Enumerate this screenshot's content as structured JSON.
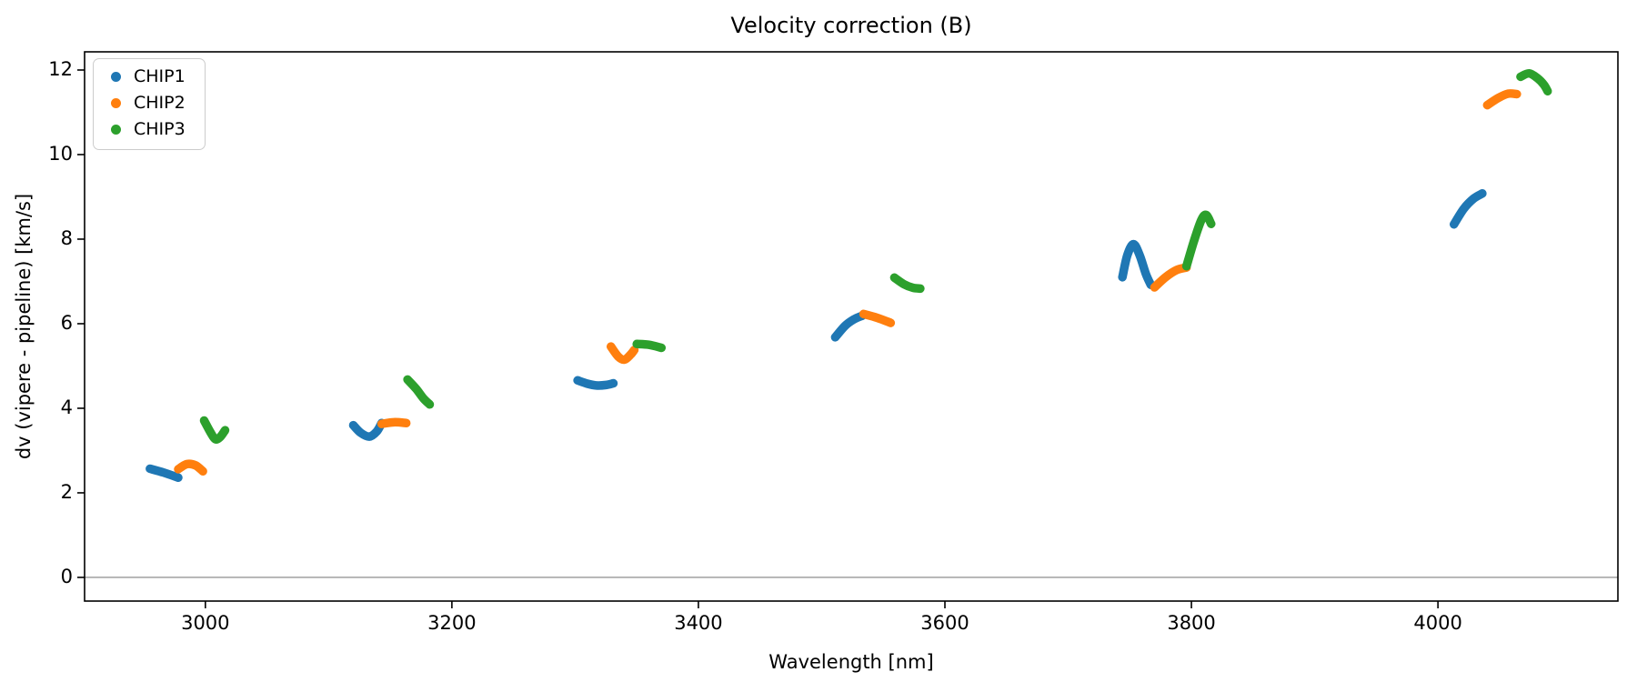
{
  "chart_data": {
    "type": "scatter",
    "title": "Velocity correction (B)",
    "xlabel": "Wavelength [nm]",
    "ylabel": "dv (vipere - pipeline) [km/s]",
    "xlim": [
      2902,
      4146
    ],
    "ylim": [
      -0.56,
      12.43
    ],
    "xticks": [
      3000,
      3200,
      3400,
      3600,
      3800,
      4000
    ],
    "yticks": [
      0,
      2,
      4,
      6,
      8,
      10,
      12
    ],
    "grid": false,
    "hline_y": 0,
    "hline_color": "#808080",
    "axis_color": "#000000",
    "legend": {
      "position": "upper left",
      "entries": [
        {
          "label": "CHIP1",
          "color": "#1f77b4"
        },
        {
          "label": "CHIP2",
          "color": "#ff7f0e"
        },
        {
          "label": "CHIP3",
          "color": "#2ca02c"
        }
      ]
    },
    "series": [
      {
        "name": "CHIP1",
        "color": "#1f77b4",
        "segments": [
          [
            [
              2955,
              2.57
            ],
            [
              2966,
              2.48
            ],
            [
              2978,
              2.36
            ]
          ],
          [
            [
              3120,
              3.6
            ],
            [
              3126,
              3.42
            ],
            [
              3133,
              3.33
            ],
            [
              3139,
              3.45
            ],
            [
              3143,
              3.65
            ]
          ],
          [
            [
              3302,
              4.66
            ],
            [
              3310,
              4.58
            ],
            [
              3317,
              4.54
            ],
            [
              3325,
              4.55
            ],
            [
              3331,
              4.59
            ]
          ],
          [
            [
              3511,
              5.68
            ],
            [
              3519,
              5.95
            ],
            [
              3526,
              6.1
            ],
            [
              3533,
              6.19
            ]
          ],
          [
            [
              3744,
              7.1
            ],
            [
              3748,
              7.62
            ],
            [
              3753,
              7.88
            ],
            [
              3758,
              7.62
            ],
            [
              3763,
              7.18
            ],
            [
              3767,
              6.92
            ]
          ],
          [
            [
              4013,
              8.35
            ],
            [
              4021,
              8.72
            ],
            [
              4029,
              8.96
            ],
            [
              4036,
              9.08
            ]
          ]
        ]
      },
      {
        "name": "CHIP2",
        "color": "#ff7f0e",
        "segments": [
          [
            [
              2978,
              2.56
            ],
            [
              2985,
              2.68
            ],
            [
              2992,
              2.65
            ],
            [
              2998,
              2.51
            ]
          ],
          [
            [
              3143,
              3.63
            ],
            [
              3153,
              3.67
            ],
            [
              3163,
              3.65
            ]
          ],
          [
            [
              3329,
              5.46
            ],
            [
              3335,
              5.22
            ],
            [
              3340,
              5.15
            ],
            [
              3345,
              5.27
            ],
            [
              3348,
              5.38
            ]
          ],
          [
            [
              3534,
              6.23
            ],
            [
              3545,
              6.14
            ],
            [
              3556,
              6.02
            ]
          ],
          [
            [
              3770,
              6.86
            ],
            [
              3779,
              7.1
            ],
            [
              3788,
              7.27
            ],
            [
              3796,
              7.33
            ]
          ],
          [
            [
              4040,
              11.17
            ],
            [
              4049,
              11.34
            ],
            [
              4057,
              11.44
            ],
            [
              4064,
              11.43
            ]
          ]
        ]
      },
      {
        "name": "CHIP3",
        "color": "#2ca02c",
        "segments": [
          [
            [
              2999,
              3.71
            ],
            [
              3004,
              3.44
            ],
            [
              3008,
              3.27
            ],
            [
              3012,
              3.32
            ],
            [
              3016,
              3.48
            ]
          ],
          [
            [
              3164,
              4.68
            ],
            [
              3171,
              4.46
            ],
            [
              3177,
              4.23
            ],
            [
              3182,
              4.09
            ]
          ],
          [
            [
              3350,
              5.52
            ],
            [
              3360,
              5.5
            ],
            [
              3370,
              5.43
            ]
          ],
          [
            [
              3559,
              7.09
            ],
            [
              3567,
              6.93
            ],
            [
              3574,
              6.85
            ],
            [
              3580,
              6.83
            ]
          ],
          [
            [
              3796,
              7.36
            ],
            [
              3802,
              7.95
            ],
            [
              3808,
              8.45
            ],
            [
              3812,
              8.57
            ],
            [
              3816,
              8.36
            ]
          ],
          [
            [
              4067,
              11.84
            ],
            [
              4074,
              11.92
            ],
            [
              4081,
              11.8
            ],
            [
              4086,
              11.65
            ],
            [
              4089,
              11.5
            ]
          ]
        ]
      }
    ]
  }
}
